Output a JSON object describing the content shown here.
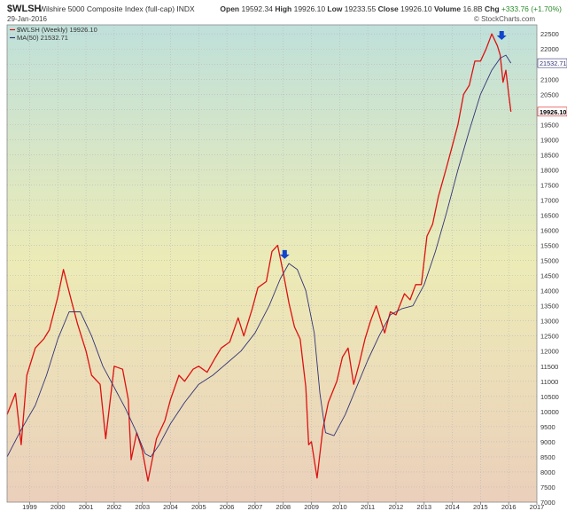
{
  "header": {
    "symbol": "$WLSH",
    "description": "Wilshire 5000 Composite Index (full-cap) INDX",
    "date": "29-Jan-2016",
    "credit": "© StockCharts.com",
    "ohlc": {
      "open_label": "Open",
      "open": "19592.34",
      "high_label": "High",
      "high": "19926.10",
      "low_label": "Low",
      "low": "19233.55",
      "close_label": "Close",
      "close": "19926.10",
      "volume_label": "Volume",
      "volume": "16.8B",
      "chg_label": "Chg",
      "chg": "+333.76 (+1.70%)"
    }
  },
  "colors": {
    "price_line": "#dd1111",
    "ma_line": "#333377",
    "arrow": "#1144cc",
    "bg_top": "#bfe0da",
    "bg_mid": "#ecebb6",
    "bg_bottom": "#ebcfbb"
  },
  "chart_data": {
    "type": "line",
    "x_unit": "year",
    "xlim": [
      1998.2,
      2017.0
    ],
    "ylim": [
      7000,
      22800
    ],
    "x_tick_labels": [
      "1999",
      "2000",
      "2001",
      "2002",
      "2003",
      "2004",
      "2005",
      "2006",
      "2007",
      "2008",
      "2009",
      "2010",
      "2011",
      "2012",
      "2013",
      "2014",
      "2015",
      "2016",
      "2017"
    ],
    "y_tick_labels": [
      "7000",
      "7500",
      "8000",
      "8500",
      "9000",
      "9500",
      "10000",
      "10500",
      "11000",
      "11500",
      "12000",
      "12500",
      "13000",
      "13500",
      "14000",
      "14500",
      "15000",
      "15500",
      "16000",
      "16500",
      "17000",
      "17500",
      "18000",
      "18500",
      "19000",
      "19500",
      "20000",
      "20500",
      "21000",
      "21500",
      "22000",
      "22500"
    ],
    "grid": true,
    "legend_position": "top-left",
    "series": [
      {
        "name": "$WLSH (Weekly) 19926.10",
        "kind": "price",
        "x": [
          1998.2,
          1998.5,
          1998.7,
          1998.9,
          1999.2,
          1999.5,
          1999.7,
          2000.0,
          2000.2,
          2000.5,
          2000.7,
          2001.0,
          2001.2,
          2001.5,
          2001.7,
          2002.0,
          2002.3,
          2002.5,
          2002.6,
          2002.8,
          2003.0,
          2003.2,
          2003.5,
          2003.8,
          2004.0,
          2004.3,
          2004.5,
          2004.8,
          2005.0,
          2005.3,
          2005.6,
          2005.8,
          2006.1,
          2006.4,
          2006.6,
          2006.9,
          2007.1,
          2007.4,
          2007.6,
          2007.8,
          2008.0,
          2008.2,
          2008.4,
          2008.6,
          2008.8,
          2008.9,
          2009.0,
          2009.2,
          2009.4,
          2009.6,
          2009.9,
          2010.1,
          2010.3,
          2010.5,
          2010.7,
          2010.9,
          2011.1,
          2011.3,
          2011.6,
          2011.8,
          2012.0,
          2012.3,
          2012.5,
          2012.7,
          2012.9,
          2013.1,
          2013.3,
          2013.5,
          2013.8,
          2014.0,
          2014.2,
          2014.4,
          2014.6,
          2014.8,
          2015.0,
          2015.2,
          2015.4,
          2015.6,
          2015.7,
          2015.8,
          2015.9,
          2016.0,
          2016.08
        ],
        "y": [
          9900,
          10600,
          8900,
          11200,
          12100,
          12400,
          12700,
          13800,
          14700,
          13600,
          12900,
          12000,
          11200,
          10900,
          9100,
          11500,
          11400,
          10400,
          8400,
          9300,
          8700,
          7700,
          9100,
          9700,
          10400,
          11200,
          11000,
          11400,
          11500,
          11300,
          11800,
          12100,
          12300,
          13100,
          12500,
          13400,
          14100,
          14300,
          15300,
          15500,
          14600,
          13600,
          12800,
          12400,
          10800,
          8900,
          9000,
          7800,
          9400,
          10300,
          11000,
          11800,
          12100,
          10900,
          11600,
          12400,
          13000,
          13500,
          12600,
          13300,
          13200,
          13900,
          13700,
          14200,
          14200,
          15800,
          16200,
          17100,
          18100,
          18800,
          19500,
          20500,
          20800,
          21600,
          21600,
          22000,
          22500,
          22100,
          21800,
          20900,
          21300,
          20500,
          19926
        ]
      },
      {
        "name": "MA(50) 21532.71",
        "kind": "ma",
        "x": [
          1998.2,
          1998.7,
          1999.2,
          1999.6,
          2000.0,
          2000.4,
          2000.8,
          2001.2,
          2001.6,
          2002.0,
          2002.4,
          2002.8,
          2003.1,
          2003.3,
          2003.6,
          2004.0,
          2004.5,
          2005.0,
          2005.5,
          2006.0,
          2006.5,
          2007.0,
          2007.5,
          2007.9,
          2008.2,
          2008.5,
          2008.8,
          2009.1,
          2009.3,
          2009.5,
          2009.8,
          2010.2,
          2010.6,
          2011.0,
          2011.4,
          2011.8,
          2012.2,
          2012.6,
          2013.0,
          2013.4,
          2013.8,
          2014.2,
          2014.6,
          2015.0,
          2015.4,
          2015.7,
          2015.9,
          2016.08
        ],
        "y": [
          8500,
          9400,
          10200,
          11200,
          12400,
          13300,
          13300,
          12500,
          11500,
          10800,
          10100,
          9300,
          8600,
          8500,
          8900,
          9600,
          10300,
          10900,
          11200,
          11600,
          12000,
          12600,
          13500,
          14400,
          14900,
          14700,
          14000,
          12600,
          10600,
          9300,
          9200,
          9900,
          10800,
          11700,
          12500,
          13200,
          13400,
          13500,
          14200,
          15300,
          16600,
          18000,
          19300,
          20500,
          21300,
          21700,
          21800,
          21533
        ]
      }
    ],
    "annotations": [
      {
        "type": "arrow-down",
        "x": 2008.05,
        "y": 15050
      },
      {
        "type": "arrow-down",
        "x": 2015.75,
        "y": 22300
      }
    ],
    "price_tags": [
      {
        "value": "21532.71",
        "kind": "ma"
      },
      {
        "value": "19926.10",
        "kind": "price"
      }
    ]
  }
}
